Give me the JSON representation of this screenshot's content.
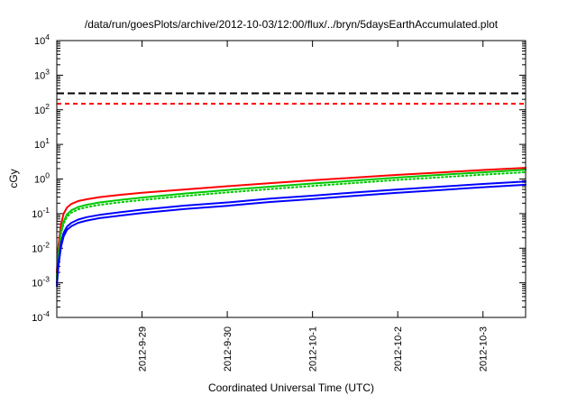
{
  "chart_data": {
    "type": "line",
    "title": "/data/run/goesPlots/archive/2012-10-03/12:00/flux/../bryn/5daysEarthAccumulated.plot",
    "xlabel": "Coordinated Universal Time (UTC)",
    "ylabel": "cGy",
    "grid": false,
    "legend": "none",
    "x_axis": {
      "unit": "days since 2012-09-28 00:00 UTC",
      "xlim": [
        0,
        5.5
      ],
      "ticks": [
        {
          "t": 1,
          "label": "2012-9-29"
        },
        {
          "t": 2,
          "label": "2012-9-30"
        },
        {
          "t": 3,
          "label": "2012-10-1"
        },
        {
          "t": 4,
          "label": "2012-10-2"
        },
        {
          "t": 5,
          "label": "2012-10-3"
        }
      ]
    },
    "y_axis": {
      "scale": "log10",
      "exp_range": [
        -4,
        4
      ],
      "tick_base": "10",
      "tick_exponents": [
        4,
        3,
        2,
        1,
        0,
        -1,
        -2,
        -3,
        -4
      ]
    },
    "thresholds": [
      {
        "name": "black-dashed-limit",
        "value": 300,
        "color": "#000000",
        "style": "dashed"
      },
      {
        "name": "red-dashed-limit",
        "value": 150,
        "color": "#ff0000",
        "style": "dashed"
      }
    ],
    "x_points": [
      0,
      0.02,
      0.05,
      0.08,
      0.12,
      0.17,
      0.25,
      0.35,
      0.5,
      0.75,
      1,
      1.5,
      2,
      2.5,
      3,
      3.5,
      4,
      4.5,
      5,
      5.5
    ],
    "series": [
      {
        "name": "dose-red",
        "color": "#ff0000",
        "style": "solid",
        "y": [
          0.002,
          0.012,
          0.05,
          0.1,
          0.15,
          0.19,
          0.23,
          0.26,
          0.3,
          0.35,
          0.4,
          0.5,
          0.62,
          0.76,
          0.92,
          1.1,
          1.32,
          1.55,
          1.82,
          2.1
        ]
      },
      {
        "name": "dose-green",
        "color": "#00c800",
        "style": "solid",
        "y": [
          0.0015,
          0.007,
          0.03,
          0.06,
          0.095,
          0.125,
          0.155,
          0.18,
          0.21,
          0.25,
          0.29,
          0.38,
          0.48,
          0.6,
          0.74,
          0.9,
          1.1,
          1.32,
          1.56,
          1.85
        ]
      },
      {
        "name": "dose-green-dotted",
        "color": "#00c800",
        "style": "dotted",
        "y": [
          0.0013,
          0.006,
          0.026,
          0.051,
          0.081,
          0.106,
          0.132,
          0.153,
          0.179,
          0.213,
          0.247,
          0.323,
          0.41,
          0.51,
          0.63,
          0.77,
          0.94,
          1.12,
          1.33,
          1.57
        ]
      },
      {
        "name": "dose-blue-upper",
        "color": "#0000ff",
        "style": "solid",
        "y": [
          0.001,
          0.004,
          0.014,
          0.028,
          0.042,
          0.054,
          0.067,
          0.079,
          0.092,
          0.11,
          0.13,
          0.17,
          0.21,
          0.27,
          0.33,
          0.41,
          0.5,
          0.6,
          0.72,
          0.85
        ]
      },
      {
        "name": "dose-blue-lower",
        "color": "#0000ff",
        "style": "solid",
        "y": [
          0.0008,
          0.0032,
          0.011,
          0.022,
          0.034,
          0.043,
          0.054,
          0.063,
          0.074,
          0.088,
          0.104,
          0.136,
          0.168,
          0.216,
          0.264,
          0.328,
          0.4,
          0.48,
          0.58,
          0.68
        ]
      }
    ]
  }
}
